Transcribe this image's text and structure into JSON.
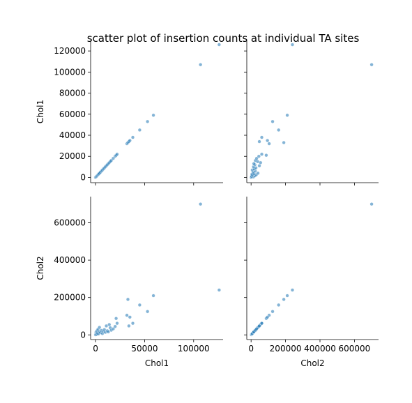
{
  "chart_data": {
    "type": "scatter",
    "title": "scatter plot of insertion counts at individual TA sites",
    "variables": [
      "Chol1",
      "Chol2"
    ],
    "point_color": "#1f77b4",
    "ranges": {
      "Chol1": [
        -5000,
        130000
      ],
      "Chol2": [
        -25000,
        740000
      ]
    },
    "ticks": {
      "Chol1_x": [
        0,
        50000,
        100000
      ],
      "Chol1_y": [
        0,
        20000,
        40000,
        60000,
        80000,
        100000,
        120000
      ],
      "Chol2": [
        0,
        200000,
        400000,
        600000
      ]
    },
    "points": {
      "Chol1": [
        0,
        500,
        1000,
        1500,
        2000,
        2500,
        3000,
        3500,
        4000,
        5000,
        6000,
        7000,
        8000,
        9000,
        10000,
        11000,
        12000,
        13000,
        14000,
        15000,
        16000,
        18000,
        20000,
        21000,
        22000,
        32000,
        33000,
        34000,
        35000,
        38000,
        45000,
        53000,
        59000,
        107000,
        126000
      ],
      "Chol2": [
        1000,
        14000,
        3000,
        22000,
        9000,
        30000,
        5000,
        17000,
        40000,
        12000,
        24000,
        7000,
        18000,
        28000,
        14000,
        48000,
        22000,
        16000,
        55000,
        38000,
        25000,
        32000,
        45000,
        88000,
        62000,
        105000,
        190000,
        48000,
        95000,
        62000,
        160000,
        125000,
        210000,
        700000,
        240000
      ]
    }
  }
}
